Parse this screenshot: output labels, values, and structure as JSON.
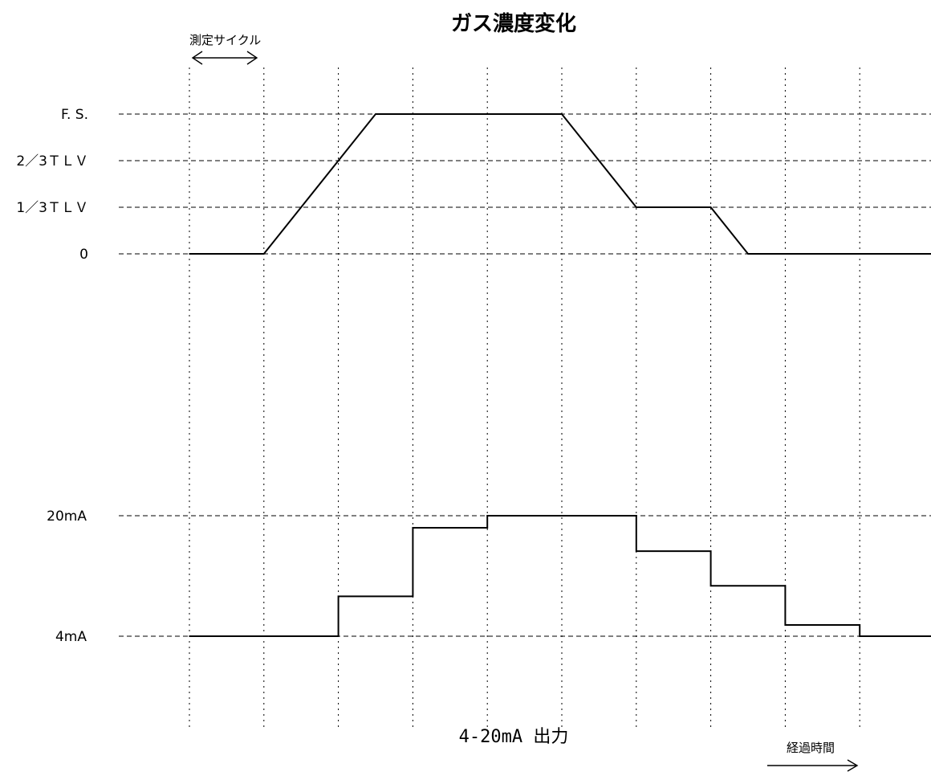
{
  "title": "ガス濃度変化",
  "measurement_cycle_label": "測定サイクル",
  "elapsed_time_label": "経過時間",
  "output_label": "4-20mA 出力",
  "top_levels": [
    {
      "label": "F. S.",
      "value": 3
    },
    {
      "label": "2／3ＴＬＶ",
      "value": 2
    },
    {
      "label": "1／3ＴＬＶ",
      "value": 1
    },
    {
      "label": "0",
      "value": 0
    }
  ],
  "bottom_levels": [
    {
      "label": "20mA",
      "value": 20
    },
    {
      "label": "4mA",
      "value": 4
    }
  ],
  "gas_concentration_curve": [
    [
      0,
      0
    ],
    [
      1,
      0
    ],
    [
      2.5,
      3
    ],
    [
      5,
      3
    ],
    [
      6,
      1
    ],
    [
      7,
      1
    ],
    [
      7.5,
      0
    ],
    [
      10,
      0
    ]
  ],
  "output_steps": [
    {
      "from": 0,
      "to": 2,
      "value": 4
    },
    {
      "from": 2,
      "to": 3,
      "value": 9.3
    },
    {
      "from": 3,
      "to": 4,
      "value": 18.4
    },
    {
      "from": 4,
      "to": 6,
      "value": 20
    },
    {
      "from": 6,
      "to": 7,
      "value": 15.3
    },
    {
      "from": 7,
      "to": 8,
      "value": 10.7
    },
    {
      "from": 8,
      "to": 9,
      "value": 5.5
    },
    {
      "from": 9,
      "to": 10,
      "value": 4
    }
  ],
  "cycle_count": 10,
  "colors": {
    "line": "#000000",
    "grid": "#000000"
  }
}
